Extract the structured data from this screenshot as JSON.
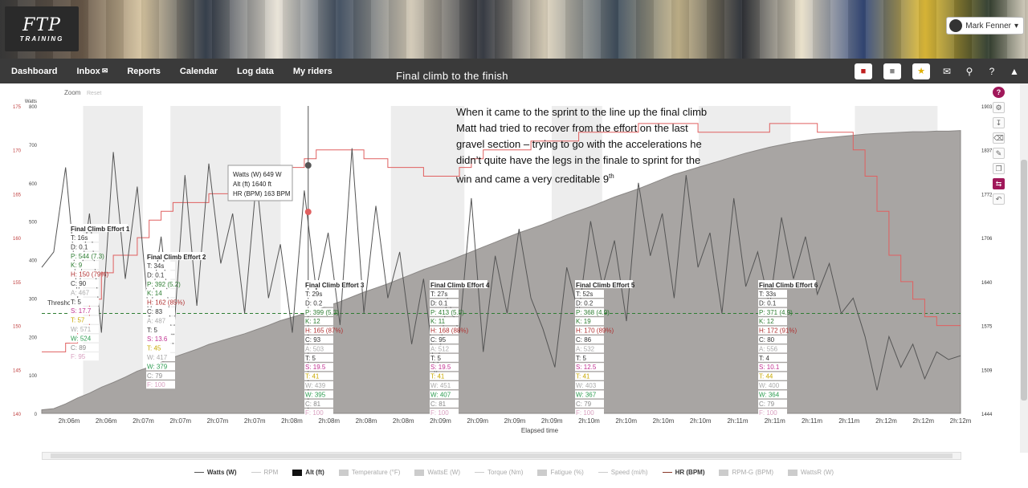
{
  "app": {
    "logo_mark": "FTP",
    "logo_sub": "TRAINING",
    "user_name": "Mark Fenner",
    "user_caret": "▾"
  },
  "nav": {
    "items": [
      "Dashboard",
      "Inbox",
      "Reports",
      "Calendar",
      "Log data",
      "My riders"
    ],
    "inbox_icon": "✉",
    "workout_title": "Final climb to the finish",
    "right_icons": [
      "jersey-red-icon",
      "jersey-grey-icon",
      "jersey-star-icon",
      "mail-icon",
      "search-icon",
      "help-icon",
      "collapse-icon"
    ]
  },
  "chart_top": {
    "zoom_label": "Zoom",
    "reset_label": "Reset",
    "left_axis_label": "Watts",
    "threshold_label": "Thresho"
  },
  "tooltip": {
    "line1": "Watts (W)",
    "line1_val": "649 W",
    "line2": "Alt (ft)",
    "line2_val": "1640 ft",
    "line3": "HR (BPM)",
    "line3_val": "163 BPM"
  },
  "note": {
    "text": "When it came to the sprint to the line up the final climb Matt had tried to recover from the effort on the last gravel section – trying to go with the accelerations he didn’t quite have the legs in the finale to sprint for the win and came a very creditable 9",
    "sup": "th"
  },
  "x_axis_title": "Elapsed time",
  "legend": [
    {
      "label": "Watts (W)",
      "on": true,
      "kind": "line",
      "color": "#555555"
    },
    {
      "label": "RPM",
      "on": false,
      "kind": "line",
      "color": "#cccccc"
    },
    {
      "label": "Alt (ft)",
      "on": true,
      "kind": "box",
      "color": "#111111"
    },
    {
      "label": "Temperature (°F)",
      "on": false,
      "kind": "box",
      "color": "#cccccc"
    },
    {
      "label": "WattsE (W)",
      "on": false,
      "kind": "box",
      "color": "#cccccc"
    },
    {
      "label": "Torque (Nm)",
      "on": false,
      "kind": "line",
      "color": "#cccccc"
    },
    {
      "label": "Fatigue (%)",
      "on": false,
      "kind": "box",
      "color": "#cccccc"
    },
    {
      "label": "Speed (mi/h)",
      "on": false,
      "kind": "line",
      "color": "#cccccc"
    },
    {
      "label": "HR (BPM)",
      "on": true,
      "kind": "line",
      "color": "#8a3a2a"
    },
    {
      "label": "RPM-G (BPM)",
      "on": false,
      "kind": "box",
      "color": "#cccccc"
    },
    {
      "label": "WattsR (W)",
      "on": false,
      "kind": "box",
      "color": "#cccccc"
    }
  ],
  "colors": {
    "accent": "#a0185a",
    "power_line": "#555555",
    "hr_line": "#e06060",
    "altitude_fill": "#a8a5a3",
    "threshold": "#2e7d32",
    "effort_band": "#ededed"
  },
  "chart_data": {
    "type": "line",
    "xlabel": "Elapsed time",
    "x_ticks": [
      "2h:06m",
      "2h:06m",
      "2h:07m",
      "2h:07m",
      "2h:07m",
      "2h:07m",
      "2h:08m",
      "2h:08m",
      "2h:08m",
      "2h:08m",
      "2h:09m",
      "2h:09m",
      "2h:09m",
      "2h:09m",
      "2h:10m",
      "2h:10m",
      "2h:10m",
      "2h:10m",
      "2h:11m",
      "2h:11m",
      "2h:11m",
      "2h:11m",
      "2h:12m",
      "2h:12m",
      "2h:12m"
    ],
    "watts_ticks": [
      "0",
      "100",
      "200",
      "300",
      "400",
      "500",
      "600",
      "700",
      "800"
    ],
    "hr_ticks": [
      "140",
      "145",
      "150",
      "155",
      "160",
      "165",
      "170",
      "175"
    ],
    "alt_ticks": [
      "1444",
      "1509",
      "1575",
      "1640",
      "1706",
      "1772",
      "1837",
      "1903"
    ],
    "threshold_watts": 260,
    "series": [
      {
        "name": "Watts (W)",
        "values": [
          380,
          420,
          640,
          300,
          520,
          210,
          680,
          350,
          590,
          240,
          460,
          180,
          620,
          280,
          650,
          390,
          520,
          260,
          610,
          300,
          440,
          210,
          580,
          320,
          470,
          230,
          690,
          260,
          540,
          300,
          420,
          180,
          350,
          90,
          300,
          210,
          560,
          160,
          410,
          260,
          480,
          300,
          220,
          120,
          380,
          260,
          500,
          330,
          450,
          240,
          600,
          410,
          520,
          300,
          620,
          380,
          470,
          260,
          560,
          330,
          420,
          280,
          510,
          350,
          460,
          310,
          390,
          260,
          300,
          200,
          60,
          200,
          120,
          180,
          90,
          160,
          140,
          150
        ]
      },
      {
        "name": "HR (BPM)",
        "values": [
          147,
          147,
          148,
          150,
          153,
          156,
          158,
          158,
          160,
          162,
          163,
          164,
          164,
          164,
          165,
          165,
          166,
          166,
          167,
          168,
          168,
          168,
          169,
          170,
          170,
          170,
          170,
          169,
          169,
          168,
          168,
          168,
          167,
          167,
          167,
          168,
          169,
          170,
          170,
          170,
          170,
          171,
          171,
          171,
          171,
          172,
          172,
          172,
          172,
          172,
          173,
          173,
          173,
          173,
          173,
          172,
          172,
          172,
          172,
          172,
          172,
          173,
          173,
          173,
          173,
          172,
          172,
          172,
          170,
          167,
          163,
          158,
          155,
          153,
          151,
          150,
          150,
          150
        ]
      },
      {
        "name": "Alt (ft)",
        "values": [
          1450,
          1452,
          1460,
          1470,
          1478,
          1488,
          1496,
          1505,
          1515,
          1522,
          1530,
          1538,
          1545,
          1552,
          1560,
          1566,
          1572,
          1578,
          1585,
          1592,
          1600,
          1606,
          1612,
          1618,
          1625,
          1632,
          1640,
          1648,
          1655,
          1662,
          1670,
          1678,
          1686,
          1693,
          1700,
          1708,
          1716,
          1724,
          1732,
          1740,
          1748,
          1755,
          1762,
          1770,
          1778,
          1785,
          1792,
          1800,
          1808,
          1815,
          1822,
          1830,
          1838,
          1846,
          1852,
          1858,
          1864,
          1870,
          1876,
          1882,
          1887,
          1892,
          1896,
          1900,
          1903,
          1906,
          1908,
          1910,
          1912,
          1914,
          1915,
          1916,
          1917,
          1918,
          1918,
          1919,
          1919,
          1920
        ]
      }
    ],
    "efforts": [
      {
        "title": "Final Climb Effort 1",
        "start_frac": 0.045,
        "end_frac": 0.11,
        "rows": [
          [
            "T:",
            "16s",
            "#333"
          ],
          [
            "D:",
            "0.1",
            "#333"
          ],
          [
            "P:",
            "544 (7.3)",
            "#2e7d32"
          ],
          [
            "K:",
            "9",
            "#2e7d32"
          ],
          [
            "H:",
            "150 (79%)",
            "#b03030"
          ],
          [
            "C:",
            "90",
            "#333"
          ],
          [
            "A:",
            "467",
            "#aaa"
          ],
          [
            "T:",
            "5",
            "#333"
          ],
          [
            "S:",
            "17.7",
            "#c03090"
          ],
          [
            "T:",
            "57",
            "#c8a800"
          ],
          [
            "W:",
            "571",
            "#aaa"
          ],
          [
            "W:",
            "524",
            "#2e9d52"
          ],
          [
            "C:",
            "89",
            "#888"
          ],
          [
            "F:",
            "95",
            "#d9a0c0"
          ]
        ]
      },
      {
        "title": "Final Climb Effort 2",
        "start_frac": 0.14,
        "end_frac": 0.26,
        "rows": [
          [
            "T:",
            "34s",
            "#333"
          ],
          [
            "D:",
            "0.1",
            "#333"
          ],
          [
            "P:",
            "392 (5.2)",
            "#2e7d32"
          ],
          [
            "K:",
            "14",
            "#2e7d32"
          ],
          [
            "H:",
            "162 (85%)",
            "#b03030"
          ],
          [
            "C:",
            "83",
            "#333"
          ],
          [
            "A:",
            "487",
            "#aaa"
          ],
          [
            "T:",
            "5",
            "#333"
          ],
          [
            "S:",
            "13.6",
            "#c03090"
          ],
          [
            "T:",
            "45",
            "#c8a800"
          ],
          [
            "W:",
            "417",
            "#aaa"
          ],
          [
            "W:",
            "379",
            "#2e9d52"
          ],
          [
            "C:",
            "79",
            "#888"
          ],
          [
            "F:",
            "100",
            "#d9a0c0"
          ]
        ]
      },
      {
        "title": "Final Climb Effort 3",
        "start_frac": 0.38,
        "end_frac": 0.46,
        "rows": [
          [
            "T:",
            "29s",
            "#333"
          ],
          [
            "D:",
            "0.2",
            "#333"
          ],
          [
            "P:",
            "399 (5.3)",
            "#2e7d32"
          ],
          [
            "K:",
            "12",
            "#2e7d32"
          ],
          [
            "H:",
            "165 (87%)",
            "#b03030"
          ],
          [
            "C:",
            "93",
            "#333"
          ],
          [
            "A:",
            "503",
            "#aaa"
          ],
          [
            "T:",
            "5",
            "#333"
          ],
          [
            "S:",
            "19.5",
            "#c03090"
          ],
          [
            "T:",
            "41",
            "#c8a800"
          ],
          [
            "W:",
            "439",
            "#aaa"
          ],
          [
            "W:",
            "395",
            "#2e9d52"
          ],
          [
            "C:",
            "81",
            "#888"
          ],
          [
            "F:",
            "100",
            "#d9a0c0"
          ]
        ]
      },
      {
        "title": "Final Climb Effort 4",
        "start_frac": 0.555,
        "end_frac": 0.61,
        "rows": [
          [
            "T:",
            "27s",
            "#333"
          ],
          [
            "D:",
            "0.1",
            "#333"
          ],
          [
            "P:",
            "413 (5.5)",
            "#2e7d32"
          ],
          [
            "K:",
            "11",
            "#2e7d32"
          ],
          [
            "H:",
            "168 (88%)",
            "#b03030"
          ],
          [
            "C:",
            "95",
            "#333"
          ],
          [
            "A:",
            "512",
            "#aaa"
          ],
          [
            "T:",
            "5",
            "#333"
          ],
          [
            "S:",
            "19.5",
            "#c03090"
          ],
          [
            "T:",
            "41",
            "#c8a800"
          ],
          [
            "W:",
            "451",
            "#aaa"
          ],
          [
            "W:",
            "407",
            "#2e9d52"
          ],
          [
            "C:",
            "81",
            "#888"
          ],
          [
            "F:",
            "100",
            "#d9a0c0"
          ]
        ]
      },
      {
        "title": "Final Climb Effort 5",
        "start_frac": 0.715,
        "end_frac": 0.815,
        "rows": [
          [
            "T:",
            "52s",
            "#333"
          ],
          [
            "D:",
            "0.2",
            "#333"
          ],
          [
            "P:",
            "368 (4.9)",
            "#2e7d32"
          ],
          [
            "K:",
            "19",
            "#2e7d32"
          ],
          [
            "H:",
            "170 (89%)",
            "#b03030"
          ],
          [
            "C:",
            "86",
            "#333"
          ],
          [
            "A:",
            "532",
            "#aaa"
          ],
          [
            "T:",
            "5",
            "#333"
          ],
          [
            "S:",
            "12.5",
            "#c03090"
          ],
          [
            "T:",
            "41",
            "#c8a800"
          ],
          [
            "W:",
            "403",
            "#aaa"
          ],
          [
            "W:",
            "367",
            "#2e9d52"
          ],
          [
            "C:",
            "79",
            "#888"
          ],
          [
            "F:",
            "100",
            "#d9a0c0"
          ]
        ]
      },
      {
        "title": "Final Climb Effort 6",
        "start_frac": 0.885,
        "end_frac": 0.975,
        "rows": [
          [
            "T:",
            "33s",
            "#333"
          ],
          [
            "D:",
            "0.1",
            "#333"
          ],
          [
            "P:",
            "371 (4.9)",
            "#2e7d32"
          ],
          [
            "K:",
            "12",
            "#2e7d32"
          ],
          [
            "H:",
            "172 (91%)",
            "#b03030"
          ],
          [
            "C:",
            "80",
            "#333"
          ],
          [
            "A:",
            "556",
            "#aaa"
          ],
          [
            "T:",
            "4",
            "#333"
          ],
          [
            "S:",
            "10.1",
            "#c03090"
          ],
          [
            "T:",
            "44",
            "#c8a800"
          ],
          [
            "W:",
            "400",
            "#aaa"
          ],
          [
            "W:",
            "364",
            "#2e9d52"
          ],
          [
            "C:",
            "79",
            "#888"
          ],
          [
            "F:",
            "100",
            "#d9a0c0"
          ]
        ]
      }
    ]
  }
}
